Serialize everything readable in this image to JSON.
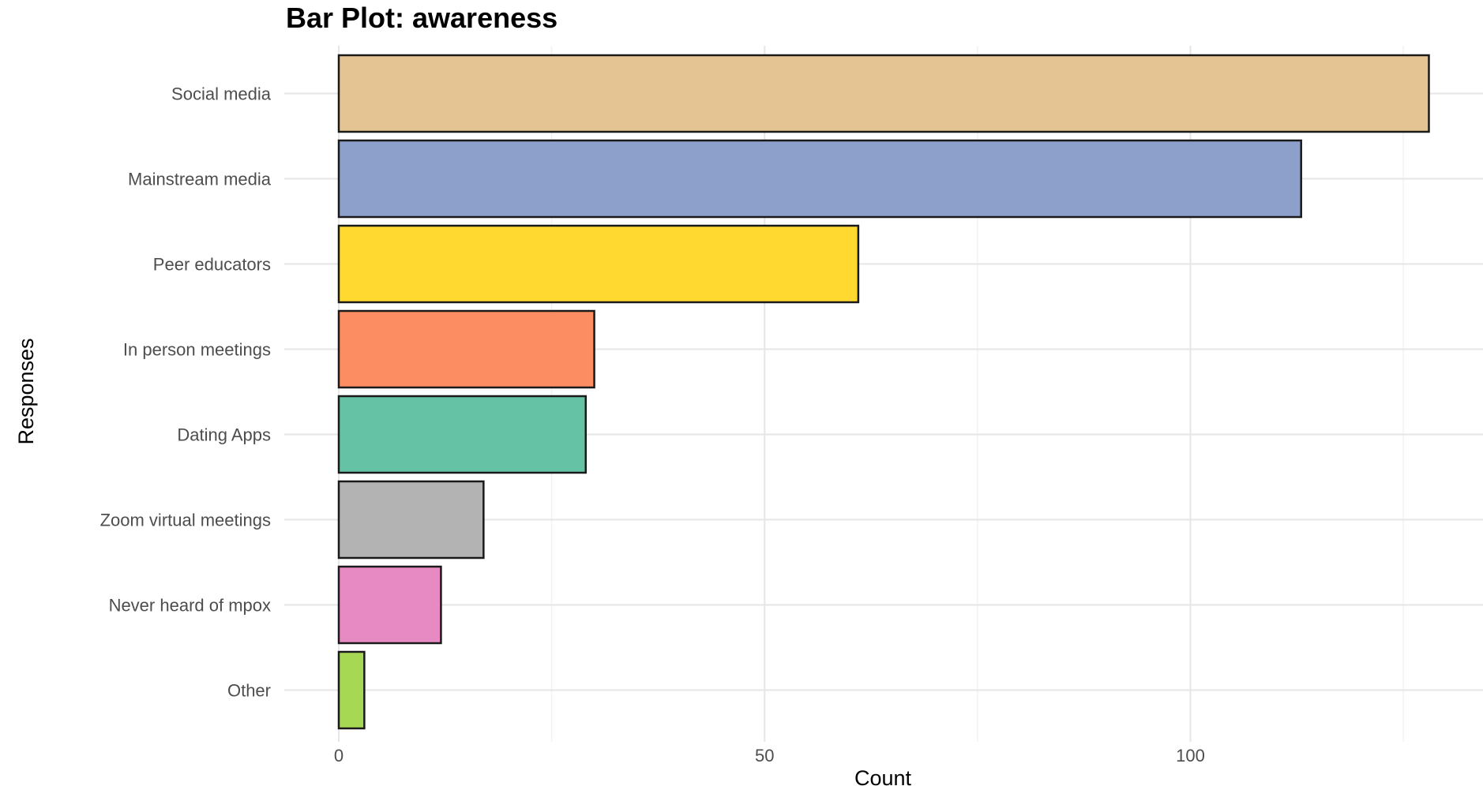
{
  "chart_data": {
    "type": "bar",
    "orientation": "horizontal",
    "title": "Bar Plot: awareness",
    "xlabel": "Count",
    "ylabel": "Responses",
    "categories": [
      "Social media",
      "Mainstream media",
      "Peer educators",
      "In person meetings",
      "Dating Apps",
      "Zoom virtual meetings",
      "Never heard of mpox",
      "Other"
    ],
    "values": [
      128,
      113,
      61,
      30,
      29,
      17,
      12,
      3
    ],
    "colors": [
      "#E5C494",
      "#8DA0CB",
      "#FFD92F",
      "#FC8D62",
      "#66C2A5",
      "#B3B3B3",
      "#E78AC3",
      "#A6D854"
    ],
    "xlim": [
      -6.5,
      134.5
    ],
    "xticks": [
      0,
      50,
      100
    ],
    "xtick_labels": [
      "0",
      "50",
      "100"
    ],
    "grid": true,
    "legend": "none"
  }
}
